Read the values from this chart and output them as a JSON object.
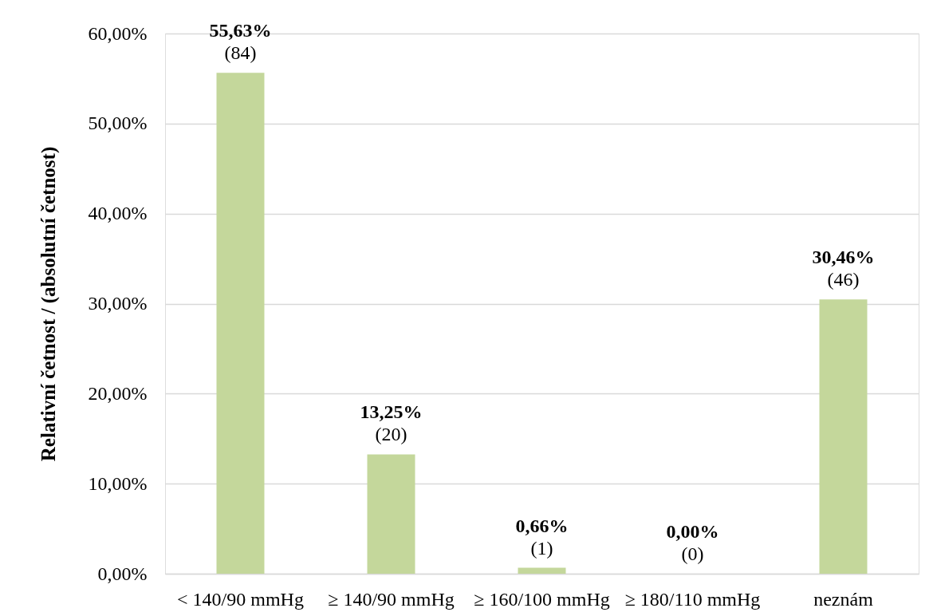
{
  "chart_data": {
    "type": "bar",
    "ylabel": "Relativní četnost / (absolutní četnost)",
    "categories": [
      "< 140/90 mmHg",
      "≥ 140/90 mmHg",
      "≥ 160/100 mmHg",
      "≥ 180/110 mmHg",
      "neznám"
    ],
    "values": [
      55.63,
      13.25,
      0.66,
      0.0,
      30.46
    ],
    "value_labels": [
      "55,63%",
      "13,25%",
      "0,66%",
      "0,00%",
      "30,46%"
    ],
    "annotations": [
      {
        "text": "(84)",
        "x": "< 140/90 mmHg",
        "y": 55.63
      },
      {
        "text": "(20)",
        "x": "≥ 140/90 mmHg",
        "y": 13.25
      },
      {
        "text": "(1)",
        "x": "≥ 160/100 mmHg",
        "y": 0.66
      },
      {
        "text": "(0)",
        "x": "≥ 180/110 mmHg",
        "y": 0.0
      },
      {
        "text": "(46)",
        "x": "neznám",
        "y": 30.46
      }
    ],
    "color": "#c4d79b",
    "ylim": [
      0,
      60
    ],
    "yticks": [
      {
        "value": 0,
        "label": "0,00%"
      },
      {
        "value": 10,
        "label": "10,00%"
      },
      {
        "value": 20,
        "label": "20,00%"
      },
      {
        "value": 30,
        "label": "30,00%"
      },
      {
        "value": 40,
        "label": "40,00%"
      },
      {
        "value": 50,
        "label": "50,00%"
      },
      {
        "value": 60,
        "label": "60,00%"
      }
    ],
    "grid": "y"
  }
}
